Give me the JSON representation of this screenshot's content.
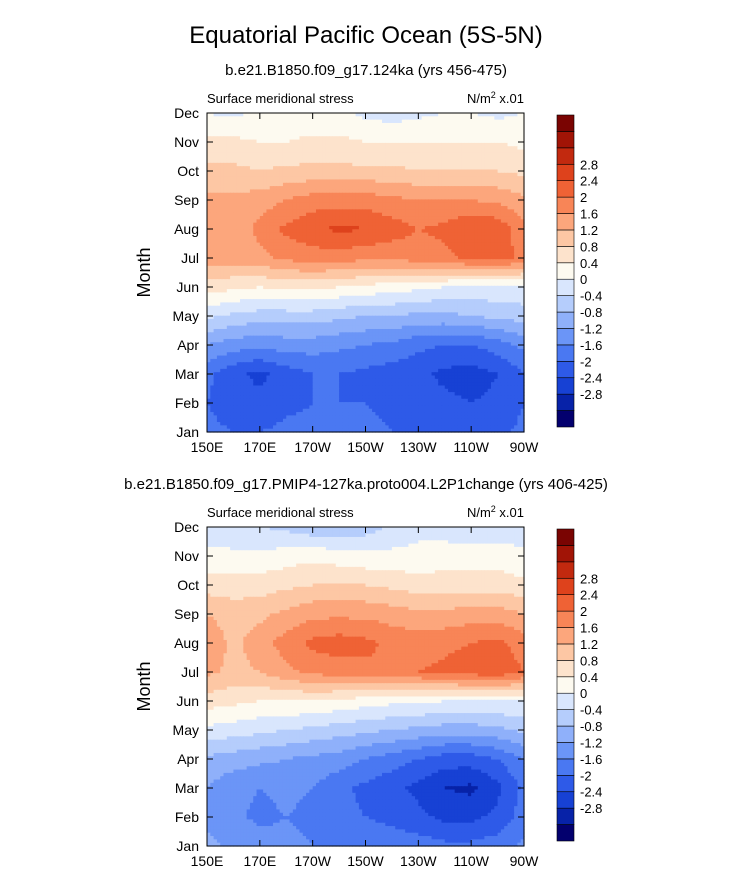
{
  "title": "Equatorial Pacific Ocean (5S-5N)",
  "color_scale": {
    "colors": [
      "#03006e",
      "#0722a8",
      "#1741d4",
      "#2e5ae8",
      "#4a78f2",
      "#6b95f7",
      "#8fb0fa",
      "#b5cdfc",
      "#d9e6fd",
      "#fdfaf0",
      "#fde3cc",
      "#fdc7a4",
      "#fca67c",
      "#f88557",
      "#ef6235",
      "#de421c",
      "#c2290f",
      "#a11406",
      "#7a0402"
    ],
    "bounds": [
      -3.2,
      -2.8,
      -2.4,
      -2.0,
      -1.6,
      -1.2,
      -0.8,
      -0.4,
      0,
      0.4,
      0.8,
      1.2,
      1.6,
      2.0,
      2.4,
      2.8,
      3.2
    ],
    "tick_labels": [
      "-2.8",
      "-2.4",
      "-2",
      "-1.6",
      "-1.2",
      "-0.8",
      "-0.4",
      "0",
      "0.4",
      "0.8",
      "1.2",
      "1.6",
      "2",
      "2.4",
      "2.8"
    ]
  },
  "chart_data": [
    {
      "type": "heatmap",
      "subtitle": "b.e21.B1850.f09_g17.124ka (yrs 456-475)",
      "left_label": "Surface meridional stress",
      "units_label": "N/m",
      "units_sup": "2",
      "units_suffix": " x.01",
      "ylabel": "Month",
      "x_tick_labels": [
        "150E",
        "170E",
        "170W",
        "150W",
        "130W",
        "110W",
        "90W"
      ],
      "y_tick_labels": [
        "Jan",
        "Feb",
        "Mar",
        "Apr",
        "May",
        "Jun",
        "Jul",
        "Aug",
        "Sep",
        "Oct",
        "Nov",
        "Dec"
      ],
      "x_range_lon": [
        150,
        270
      ],
      "y_range_month": [
        0,
        11
      ],
      "grid_lon": [
        150,
        160,
        170,
        180,
        190,
        200,
        210,
        220,
        230,
        240,
        250,
        260,
        270
      ],
      "grid": [
        [
          -1.9,
          -2.0,
          -2.0,
          -1.9,
          -1.9,
          -1.9,
          -1.9,
          -2.0,
          -2.0,
          -2.1,
          -2.2,
          -2.1,
          -1.9
        ],
        [
          -2.0,
          -2.2,
          -2.3,
          -2.1,
          -2.0,
          -2.0,
          -2.0,
          -2.1,
          -2.2,
          -2.3,
          -2.4,
          -2.3,
          -2.0
        ],
        [
          -1.9,
          -2.3,
          -2.5,
          -2.2,
          -2.0,
          -2.0,
          -2.1,
          -2.2,
          -2.3,
          -2.5,
          -2.6,
          -2.4,
          -2.0
        ],
        [
          -1.2,
          -1.4,
          -1.5,
          -1.4,
          -1.4,
          -1.5,
          -1.6,
          -1.7,
          -1.9,
          -2.0,
          -2.0,
          -1.8,
          -1.5
        ],
        [
          -0.3,
          -0.5,
          -0.6,
          -0.6,
          -0.6,
          -0.7,
          -0.8,
          -0.8,
          -0.9,
          -0.9,
          -0.8,
          -0.7,
          -0.6
        ],
        [
          0.6,
          0.5,
          0.4,
          0.5,
          0.5,
          0.4,
          0.3,
          0.2,
          0.1,
          0.0,
          -0.1,
          -0.1,
          -0.1
        ],
        [
          1.4,
          1.4,
          1.5,
          1.7,
          1.8,
          1.8,
          1.7,
          1.7,
          1.8,
          1.9,
          2.1,
          2.2,
          1.9
        ],
        [
          1.5,
          1.4,
          1.7,
          2.1,
          2.3,
          2.5,
          2.4,
          2.2,
          2.0,
          2.1,
          2.4,
          2.3,
          1.7
        ],
        [
          1.3,
          1.3,
          1.4,
          1.6,
          1.8,
          1.8,
          1.8,
          1.7,
          1.6,
          1.6,
          1.6,
          1.5,
          1.3
        ],
        [
          0.9,
          0.9,
          0.8,
          0.9,
          0.9,
          0.9,
          0.9,
          0.9,
          0.8,
          0.8,
          0.8,
          0.8,
          0.7
        ],
        [
          0.5,
          0.5,
          0.4,
          0.4,
          0.5,
          0.5,
          0.4,
          0.4,
          0.4,
          0.4,
          0.4,
          0.4,
          0.3
        ],
        [
          0.0,
          -0.1,
          0.1,
          0.1,
          0.1,
          0.1,
          -0.1,
          -0.2,
          -0.1,
          0.0,
          0.0,
          -0.1,
          0.0
        ]
      ]
    },
    {
      "type": "heatmap",
      "subtitle": "b.e21.B1850.f09_g17.PMIP4-127ka.proto004.L2P1change (yrs 406-425)",
      "left_label": "Surface meridional stress",
      "units_label": "N/m",
      "units_sup": "2",
      "units_suffix": " x.01",
      "ylabel": "Month",
      "x_tick_labels": [
        "150E",
        "170E",
        "170W",
        "150W",
        "130W",
        "110W",
        "90W"
      ],
      "y_tick_labels": [
        "Jan",
        "Feb",
        "Mar",
        "Apr",
        "May",
        "Jun",
        "Jul",
        "Aug",
        "Sep",
        "Oct",
        "Nov",
        "Dec"
      ],
      "x_range_lon": [
        150,
        270
      ],
      "y_range_month": [
        0,
        11
      ],
      "grid_lon": [
        150,
        160,
        170,
        180,
        190,
        200,
        210,
        220,
        230,
        240,
        250,
        260,
        270
      ],
      "grid": [
        [
          -1.1,
          -1.3,
          -1.4,
          -1.5,
          -1.6,
          -1.7,
          -1.7,
          -1.8,
          -1.8,
          -1.9,
          -1.9,
          -1.8,
          -1.5
        ],
        [
          -1.3,
          -1.5,
          -1.7,
          -1.6,
          -1.7,
          -1.9,
          -2.0,
          -2.1,
          -2.3,
          -2.5,
          -2.5,
          -2.3,
          -1.8
        ],
        [
          -1.2,
          -1.5,
          -1.6,
          -1.5,
          -1.6,
          -1.9,
          -2.1,
          -2.3,
          -2.5,
          -2.8,
          -2.9,
          -2.5,
          -1.9
        ],
        [
          -0.9,
          -1.0,
          -1.1,
          -1.2,
          -1.3,
          -1.4,
          -1.6,
          -1.8,
          -2.0,
          -2.2,
          -2.2,
          -2.0,
          -1.6
        ],
        [
          -0.1,
          -0.2,
          -0.3,
          -0.4,
          -0.5,
          -0.6,
          -0.7,
          -0.8,
          -0.9,
          -1.0,
          -1.0,
          -0.9,
          -0.7
        ],
        [
          0.6,
          0.5,
          0.4,
          0.4,
          0.4,
          0.3,
          0.2,
          0.1,
          0.1,
          0.0,
          0.0,
          0.0,
          0.0
        ],
        [
          1.3,
          1.1,
          1.2,
          1.5,
          1.7,
          1.8,
          1.9,
          2.0,
          2.0,
          2.1,
          2.2,
          2.3,
          2.0
        ],
        [
          1.5,
          1.1,
          1.4,
          1.8,
          2.1,
          2.2,
          2.1,
          1.9,
          1.8,
          1.9,
          2.0,
          2.1,
          1.8
        ],
        [
          1.2,
          1.0,
          1.1,
          1.3,
          1.5,
          1.5,
          1.5,
          1.4,
          1.3,
          1.3,
          1.4,
          1.4,
          1.2
        ],
        [
          0.6,
          0.6,
          0.6,
          0.7,
          0.8,
          0.8,
          0.8,
          0.7,
          0.6,
          0.6,
          0.6,
          0.6,
          0.5
        ],
        [
          0.1,
          0.1,
          0.1,
          0.2,
          0.3,
          0.2,
          0.1,
          0.1,
          0.1,
          0.2,
          0.2,
          0.2,
          0.1
        ],
        [
          -0.2,
          -0.3,
          -0.4,
          -0.5,
          -0.7,
          -0.8,
          -0.6,
          -0.3,
          -0.1,
          -0.2,
          -0.3,
          -0.3,
          -0.2
        ]
      ]
    }
  ]
}
